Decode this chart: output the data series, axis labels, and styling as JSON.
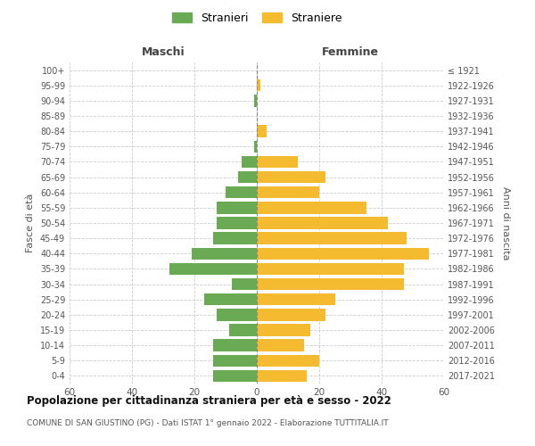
{
  "age_groups": [
    "0-4",
    "5-9",
    "10-14",
    "15-19",
    "20-24",
    "25-29",
    "30-34",
    "35-39",
    "40-44",
    "45-49",
    "50-54",
    "55-59",
    "60-64",
    "65-69",
    "70-74",
    "75-79",
    "80-84",
    "85-89",
    "90-94",
    "95-99",
    "100+"
  ],
  "birth_years": [
    "2017-2021",
    "2012-2016",
    "2007-2011",
    "2002-2006",
    "1997-2001",
    "1992-1996",
    "1987-1991",
    "1982-1986",
    "1977-1981",
    "1972-1976",
    "1967-1971",
    "1962-1966",
    "1957-1961",
    "1952-1956",
    "1947-1951",
    "1942-1946",
    "1937-1941",
    "1932-1936",
    "1927-1931",
    "1922-1926",
    "≤ 1921"
  ],
  "maschi": [
    14,
    14,
    14,
    9,
    13,
    17,
    8,
    28,
    21,
    14,
    13,
    13,
    10,
    6,
    5,
    1,
    0,
    0,
    1,
    0,
    0
  ],
  "femmine": [
    16,
    20,
    15,
    17,
    22,
    25,
    47,
    47,
    55,
    48,
    42,
    35,
    20,
    22,
    13,
    0,
    3,
    0,
    0,
    1,
    0
  ],
  "color_maschi": "#6aaa55",
  "color_femmine": "#f5bb30",
  "background_color": "#ffffff",
  "grid_color": "#cccccc",
  "title": "Popolazione per cittadinanza straniera per età e sesso - 2022",
  "subtitle": "COMUNE DI SAN GIUSTINO (PG) - Dati ISTAT 1° gennaio 2022 - Elaborazione TUTTITALIA.IT",
  "header_left": "Maschi",
  "header_right": "Femmine",
  "ylabel_left": "Fasce di età",
  "ylabel_right": "Anni di nascita",
  "legend_stranieri": "Stranieri",
  "legend_straniere": "Straniere",
  "xlim": 60,
  "figsize": [
    6.0,
    5.0
  ],
  "dpi": 100
}
